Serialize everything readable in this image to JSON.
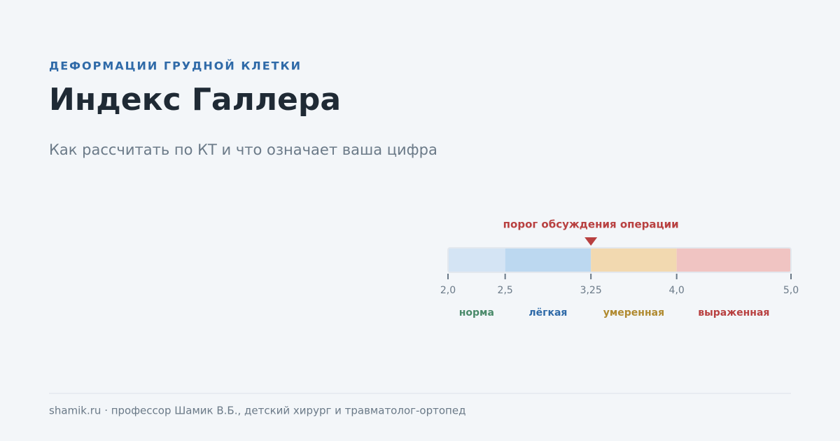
{
  "header": {
    "kicker": "ДЕФОРМАЦИИ ГРУДНОЙ КЛЕТКИ",
    "title": "Индекс Галлера",
    "subtitle": "Как рассчитать по КТ и что означает ваша цифра"
  },
  "scale": {
    "xlim": [
      2,
      5
    ],
    "xticks": [
      {
        "value": 2,
        "label": "2,0"
      },
      {
        "value": 2.5,
        "label": "2,5"
      },
      {
        "value": 3.25,
        "label": "3,25"
      },
      {
        "value": 4,
        "label": "4,0"
      },
      {
        "value": 5,
        "label": "5,0"
      }
    ],
    "bands": [
      {
        "name": "норма",
        "from": 2,
        "to": 2.5,
        "color": "#d4e4f4",
        "label_color": "#4a8a6a"
      },
      {
        "name": "лёгкая",
        "from": 2.5,
        "to": 3.25,
        "color": "#bcd8f0",
        "label_color": "#2f6aa8"
      },
      {
        "name": "умеренная",
        "from": 3.25,
        "to": 4,
        "color": "#f2d9b0",
        "label_color": "#b08a30"
      },
      {
        "name": "выраженная",
        "from": 4,
        "to": 5,
        "color": "#f0c4c2",
        "label_color": "#b84040"
      }
    ],
    "threshold": {
      "value": 3.25,
      "label": "порог обсуждения операции",
      "color": "#b84040"
    }
  },
  "footer": "shamik.ru · профессор Шамик В.Б., детский хирург и травматолог-ортопед"
}
